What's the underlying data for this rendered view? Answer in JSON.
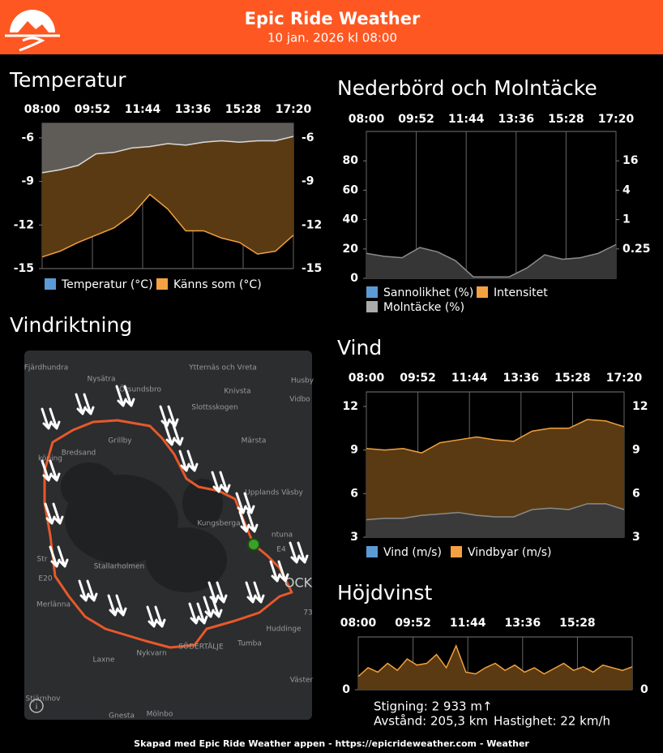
{
  "header": {
    "title": "Epic Ride Weather",
    "subtitle": "10 jan. 2026 kl 08:00"
  },
  "sections": {
    "temperature": "Temperatur",
    "precipitation": "Nederbörd och Molntäcke",
    "wind_direction": "Vindriktning",
    "wind": "Vind",
    "elevation": "Höjdvinst"
  },
  "chart_data": [
    {
      "type": "area",
      "fill_to": "top",
      "grid": "x",
      "x": [
        "08:00",
        "08:40",
        "09:20",
        "10:00",
        "10:40",
        "11:20",
        "12:00",
        "12:40",
        "13:20",
        "14:00",
        "14:40",
        "15:20",
        "16:00",
        "16:40",
        "17:20"
      ],
      "xlim": [
        "08:00",
        "17:20"
      ],
      "xticks": [
        "08:00",
        "09:52",
        "11:44",
        "13:36",
        "15:28",
        "17:20"
      ],
      "ylim": [
        -15,
        -5
      ],
      "yticks": [
        -6,
        -9,
        -12,
        -15
      ],
      "series": [
        {
          "name": "Temperatur (°C)",
          "color": "#5b9bd5",
          "stroke": "#d8d8d8",
          "fill": "#5f5c58",
          "values": [
            -8.4,
            -8.2,
            -7.9,
            -7.1,
            -7.0,
            -6.7,
            -6.6,
            -6.4,
            -6.5,
            -6.3,
            -6.2,
            -6.3,
            -6.2,
            -6.2,
            -5.9
          ]
        },
        {
          "name": "Känns som (°C)",
          "color": "#f5a142",
          "stroke": "#f0a040",
          "fill": "#5a3a12",
          "values": [
            -14.2,
            -13.8,
            -13.2,
            -12.7,
            -12.2,
            -11.3,
            -9.9,
            -10.9,
            -12.4,
            -12.4,
            -12.9,
            -13.2,
            -14.0,
            -13.8,
            -12.7
          ]
        }
      ]
    },
    {
      "type": "area",
      "fill_to": "bottom",
      "grid": "x",
      "x": [
        "08:00",
        "08:40",
        "09:20",
        "10:00",
        "10:40",
        "11:20",
        "12:00",
        "12:40",
        "13:20",
        "14:00",
        "14:40",
        "15:20",
        "16:00",
        "16:40",
        "17:20"
      ],
      "xlim": [
        "08:00",
        "17:20"
      ],
      "xticks": [
        "08:00",
        "09:52",
        "11:44",
        "13:36",
        "15:28",
        "17:20"
      ],
      "ylim": [
        0,
        100
      ],
      "yticks": [
        0,
        20,
        40,
        60,
        80
      ],
      "y2lim": [
        0.0625,
        64
      ],
      "y2scale": "log",
      "y2ticks": [
        16,
        4,
        1,
        0.25
      ],
      "series": [
        {
          "name": "Sannolikhet (%)",
          "color": "#5b9bd5",
          "stroke": "#5b9bd5",
          "fill": "#23415c",
          "values": [
            null,
            null,
            null,
            null,
            null,
            null,
            null,
            null,
            null,
            null,
            null,
            null,
            null,
            null,
            null
          ]
        },
        {
          "name": "Intensitet",
          "color": "#f5a142",
          "stroke": "#f0a040",
          "fill": "#5a3a12",
          "axis": "y2",
          "values": [
            null,
            null,
            null,
            null,
            null,
            null,
            null,
            null,
            null,
            null,
            null,
            null,
            null,
            null,
            null
          ]
        },
        {
          "name": "Molntäcke (%)",
          "color": "#aaaaaa",
          "stroke": "#8c8c8c",
          "fill": "#363636",
          "values": [
            17,
            15,
            14,
            21,
            18,
            12,
            1,
            1,
            1,
            7,
            16,
            13,
            14,
            17,
            23
          ]
        }
      ]
    },
    {
      "type": "area",
      "fill_to": "bottom",
      "grid": "x",
      "x": [
        "08:00",
        "08:40",
        "09:20",
        "10:00",
        "10:40",
        "11:20",
        "12:00",
        "12:40",
        "13:20",
        "14:00",
        "14:40",
        "15:20",
        "16:00",
        "16:40",
        "17:20"
      ],
      "xlim": [
        "08:00",
        "17:20"
      ],
      "xticks": [
        "08:00",
        "09:52",
        "11:44",
        "13:36",
        "15:28",
        "17:20"
      ],
      "ylim": [
        3,
        13
      ],
      "yticks": [
        12,
        9,
        6,
        3
      ],
      "series": [
        {
          "name": "Vind (m/s)",
          "color": "#5b9bd5",
          "stroke": "#8a8a8a",
          "fill": "#3a3a3a",
          "values": [
            4.2,
            4.3,
            4.3,
            4.5,
            4.6,
            4.7,
            4.5,
            4.4,
            4.4,
            4.9,
            5.0,
            4.9,
            5.3,
            5.3,
            4.9
          ]
        },
        {
          "name": "Vindbyar (m/s)",
          "color": "#f5a142",
          "stroke": "#f0a040",
          "fill": "#5a3a12",
          "values": [
            9.1,
            9.0,
            9.1,
            8.8,
            9.5,
            9.7,
            9.9,
            9.7,
            9.6,
            10.3,
            10.5,
            10.5,
            11.1,
            11.0,
            10.6
          ]
        }
      ]
    },
    {
      "type": "area",
      "fill_to": "bottom",
      "grid": "x",
      "x": [
        "08:00",
        "08:20",
        "08:40",
        "09:00",
        "09:20",
        "09:40",
        "10:00",
        "10:20",
        "10:40",
        "11:00",
        "11:20",
        "11:40",
        "12:00",
        "12:20",
        "12:40",
        "13:00",
        "13:20",
        "13:40",
        "14:00",
        "14:20",
        "14:40",
        "15:00",
        "15:20",
        "15:40",
        "16:00",
        "16:20",
        "16:40",
        "17:00",
        "17:20"
      ],
      "xlim": [
        "08:00",
        "17:20"
      ],
      "xticks": [
        "08:00",
        "09:52",
        "11:44",
        "13:36",
        "15:28"
      ],
      "ylim": [
        0,
        60
      ],
      "yticks": [
        0
      ],
      "series": [
        {
          "stroke": "#f0a040",
          "fill": "#5a3a12",
          "values": [
            15,
            25,
            20,
            30,
            22,
            35,
            28,
            30,
            40,
            25,
            50,
            20,
            18,
            25,
            30,
            22,
            28,
            20,
            25,
            18,
            24,
            30,
            22,
            26,
            20,
            28,
            25,
            22,
            26
          ]
        }
      ]
    }
  ],
  "stats": {
    "climb": "Stigning: 2 933 m↑",
    "distance": "Avstånd: 205,3 km",
    "speed": "Hastighet: 22 km/h"
  },
  "map": {
    "labels": [
      "Fjärdhundra",
      "Nysätra",
      "Örsundsbro",
      "Ytternäs och Vreta",
      "Husby",
      "Knivsta",
      "Vidbo",
      "Slottsskogen",
      "Märsta",
      "köping",
      "Bredsand",
      "Grillby",
      "Upplands Väsby",
      "Kungsberga",
      "ntuna",
      "Stallarholmen",
      "Str",
      "Merlänna",
      "Huddinge",
      "Tumba",
      "SÖDERTÄLJE",
      "Nykvarn",
      "Laxne",
      "Stjärnhov",
      "Gnesta",
      "Mölnbo",
      "Väster",
      "E4",
      "E20",
      "73",
      "OCK"
    ]
  },
  "footer": "Skapad med Epic Ride Weather appen - https://epicrideweather.com -  Weather"
}
